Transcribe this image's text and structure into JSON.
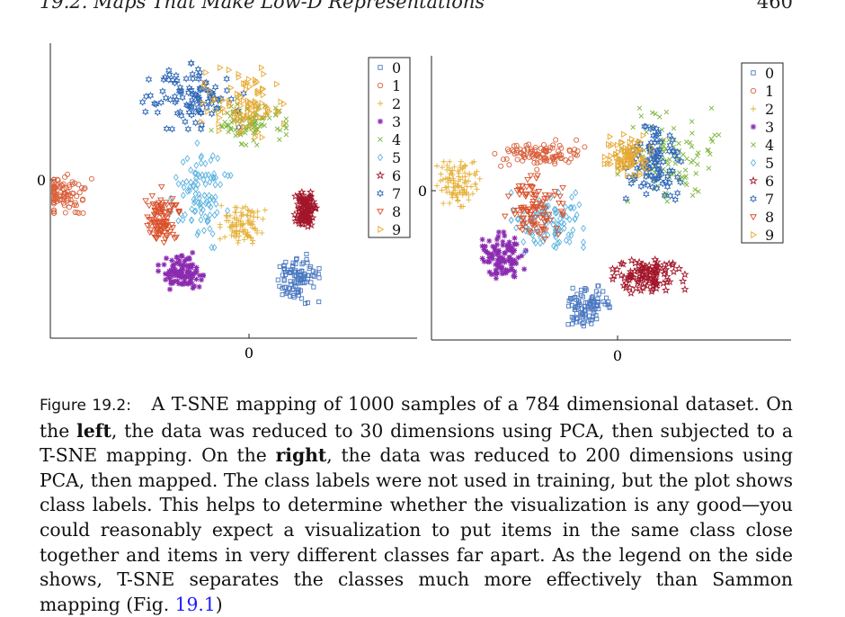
{
  "header": {
    "section_title": "19.2.  Maps That Make Low-D Representations",
    "page_number": "460"
  },
  "figure": {
    "classes": [
      "0",
      "1",
      "2",
      "3",
      "4",
      "5",
      "6",
      "7",
      "8",
      "9"
    ],
    "class_colors": {
      "0": "#4a78c2",
      "1": "#d9603b",
      "2": "#e6b13a",
      "3": "#8b2bb0",
      "4": "#7cb53a",
      "5": "#5db3e0",
      "6": "#a3162a",
      "7": "#2f67b8",
      "8": "#d9502a",
      "9": "#e6a832"
    },
    "class_markers": {
      "0": "square",
      "1": "circle",
      "2": "plus",
      "3": "asterisk",
      "4": "cross",
      "5": "diamond",
      "6": "star",
      "7": "hexagram",
      "8": "triangle-down",
      "9": "triangle-right"
    }
  },
  "chart_data": [
    {
      "type": "scatter",
      "panel": "left",
      "title": "",
      "xlabel": "",
      "ylabel": "",
      "x_ticks": [
        "0"
      ],
      "y_ticks": [
        "0"
      ],
      "legend": [
        "0",
        "1",
        "2",
        "3",
        "4",
        "5",
        "6",
        "7",
        "8",
        "9"
      ],
      "legend_position": "top-right",
      "grid": false,
      "xlim": [
        -10,
        10
      ],
      "ylim": [
        -8,
        10
      ],
      "series": [
        {
          "name": "0",
          "cluster": {
            "x": 5.7,
            "y": -4.6,
            "sx": 1.2,
            "sy": 1.3,
            "n": 100
          }
        },
        {
          "name": "1",
          "cluster": {
            "x": -9.5,
            "y": 0.7,
            "sx": 1.6,
            "sy": 1.0,
            "n": 100
          }
        },
        {
          "name": "2",
          "cluster": {
            "x": 2.2,
            "y": -1.2,
            "sx": 1.2,
            "sy": 1.0,
            "n": 100
          }
        },
        {
          "name": "3",
          "cluster": {
            "x": -1.8,
            "y": -4.2,
            "sx": 1.2,
            "sy": 1.0,
            "n": 100
          }
        },
        {
          "name": "4",
          "cluster": {
            "x": 2.6,
            "y": 5.2,
            "sx": 2.0,
            "sy": 1.2,
            "n": 100
          }
        },
        {
          "name": "5",
          "cluster": {
            "x": -0.5,
            "y": 0.6,
            "sx": 1.6,
            "sy": 2.7,
            "n": 100
          }
        },
        {
          "name": "6",
          "cluster": {
            "x": 6.3,
            "y": -0.3,
            "sx": 0.6,
            "sy": 0.9,
            "n": 100
          }
        },
        {
          "name": "7",
          "cluster": {
            "x": -1.0,
            "y": 6.8,
            "sx": 2.7,
            "sy": 1.7,
            "n": 100
          }
        },
        {
          "name": "8",
          "cluster": {
            "x": -3.0,
            "y": -0.8,
            "sx": 0.9,
            "sy": 1.6,
            "n": 100
          }
        },
        {
          "name": "9",
          "cluster": {
            "x": 2.2,
            "y": 6.4,
            "sx": 2.2,
            "sy": 1.8,
            "n": 100
          }
        }
      ]
    },
    {
      "type": "scatter",
      "panel": "right",
      "title": "",
      "xlabel": "",
      "ylabel": "",
      "x_ticks": [
        "0"
      ],
      "y_ticks": [
        "0"
      ],
      "legend": [
        "0",
        "1",
        "2",
        "3",
        "4",
        "5",
        "6",
        "7",
        "8",
        "9"
      ],
      "legend_position": "top-right",
      "grid": false,
      "xlim": [
        -10,
        10
      ],
      "ylim": [
        -8,
        10
      ],
      "series": [
        {
          "name": "0",
          "cluster": {
            "x": 0.0,
            "y": -6.0,
            "sx": 1.3,
            "sy": 1.1,
            "n": 100
          }
        },
        {
          "name": "1",
          "cluster": {
            "x": -3.0,
            "y": 3.8,
            "sx": 2.6,
            "sy": 0.8,
            "n": 100
          }
        },
        {
          "name": "2",
          "cluster": {
            "x": -8.5,
            "y": 1.9,
            "sx": 1.3,
            "sy": 1.2,
            "n": 100
          }
        },
        {
          "name": "3",
          "cluster": {
            "x": -5.5,
            "y": -2.8,
            "sx": 1.2,
            "sy": 1.3,
            "n": 100
          }
        },
        {
          "name": "4",
          "cluster": {
            "x": 5.5,
            "y": 3.8,
            "sx": 2.8,
            "sy": 2.5,
            "n": 100
          }
        },
        {
          "name": "5",
          "cluster": {
            "x": -2.6,
            "y": -0.6,
            "sx": 2.0,
            "sy": 1.6,
            "n": 100
          }
        },
        {
          "name": "6",
          "cluster": {
            "x": 4.2,
            "y": -4.1,
            "sx": 2.0,
            "sy": 0.9,
            "n": 100
          }
        },
        {
          "name": "7",
          "cluster": {
            "x": 4.6,
            "y": 3.3,
            "sx": 1.6,
            "sy": 2.0,
            "n": 100
          }
        },
        {
          "name": "8",
          "cluster": {
            "x": -3.5,
            "y": 0.4,
            "sx": 1.6,
            "sy": 1.7,
            "n": 100
          }
        },
        {
          "name": "9",
          "cluster": {
            "x": 2.8,
            "y": 3.8,
            "sx": 1.3,
            "sy": 1.1,
            "n": 100
          }
        }
      ]
    }
  ],
  "caption": {
    "label": "Figure 19.2:",
    "part1": "A T-SNE mapping of 1000 samples of a 784 dimensional dataset.  On the ",
    "left_word": "left",
    "part2": ", the data was reduced to 30 dimensions using PCA, then subjected to a T-SNE mapping.  On the ",
    "right_word": "right",
    "part3": ", the data was reduced to 200 dimensions using PCA, then mapped.  The class labels were not used in training, but the plot shows class labels.  This helps to determine whether the visualization is any good—you could reasonably expect a visualization to put items in the same class close together and items in very different classes far apart.  As the legend on the side shows, T-SNE separates the classes much more effectively than Sammon mapping (Fig. ",
    "ref": "19.1",
    "part4": ")"
  }
}
